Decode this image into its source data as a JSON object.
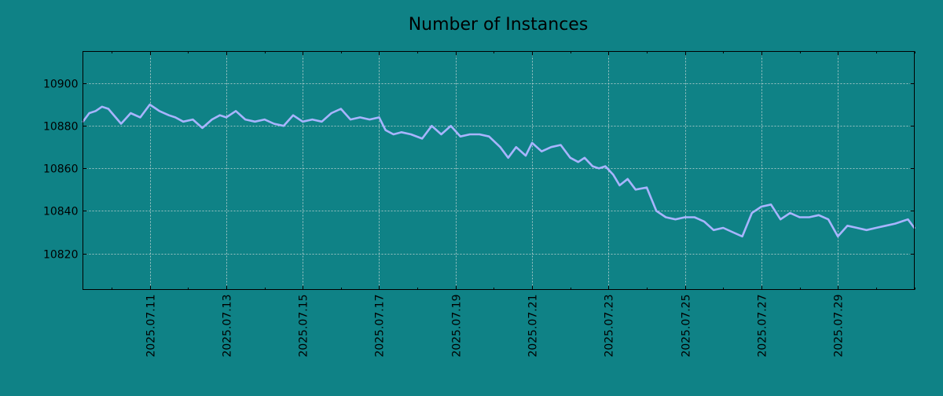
{
  "chart_data": {
    "type": "line",
    "title": "Number of Instances",
    "xlabel": "",
    "ylabel": "",
    "grid": true,
    "x_ticks": [
      "2025.07.11",
      "2025.07.13",
      "2025.07.15",
      "2025.07.17",
      "2025.07.19",
      "2025.07.21",
      "2025.07.23",
      "2025.07.25",
      "2025.07.27",
      "2025.07.29"
    ],
    "y_ticks": [
      10820,
      10840,
      10860,
      10880,
      10900
    ],
    "xlim": [
      "2025-07-09 06:00",
      "2025-07-31 00:00"
    ],
    "ylim": [
      10803,
      10915
    ],
    "colors": {
      "background": "#0f8286",
      "line": "#a8b4ff",
      "grid": "#c8d6d6",
      "axes": "#000000"
    },
    "series": [
      {
        "x": [
          "2025-07-09 06:00",
          "2025-07-09 10:00",
          "2025-07-09 14:00",
          "2025-07-09 18:00",
          "2025-07-09 22:00",
          "2025-07-10 06:00",
          "2025-07-10 12:00",
          "2025-07-10 18:00",
          "2025-07-11 00:00",
          "2025-07-11 04:00",
          "2025-07-11 06:00",
          "2025-07-11 12:00",
          "2025-07-11 16:00",
          "2025-07-11 21:00",
          "2025-07-12 03:00",
          "2025-07-12 09:00",
          "2025-07-12 15:00",
          "2025-07-12 20:00",
          "2025-07-13 00:00",
          "2025-07-13 06:00",
          "2025-07-13 12:00",
          "2025-07-13 18:00",
          "2025-07-14 00:00",
          "2025-07-14 06:00",
          "2025-07-14 12:00",
          "2025-07-14 18:00",
          "2025-07-15 00:00",
          "2025-07-15 06:00",
          "2025-07-15 12:00",
          "2025-07-15 18:00",
          "2025-07-16 00:00",
          "2025-07-16 06:00",
          "2025-07-16 12:00",
          "2025-07-16 18:00",
          "2025-07-17 00:00",
          "2025-07-17 04:00",
          "2025-07-17 09:00",
          "2025-07-17 14:00",
          "2025-07-17 20:00",
          "2025-07-18 03:00",
          "2025-07-18 09:00",
          "2025-07-18 15:00",
          "2025-07-18 21:00",
          "2025-07-19 03:00",
          "2025-07-19 09:00",
          "2025-07-19 15:00",
          "2025-07-19 21:00",
          "2025-07-20 04:00",
          "2025-07-20 09:00",
          "2025-07-20 14:00",
          "2025-07-20 20:00",
          "2025-07-21 00:00",
          "2025-07-21 06:00",
          "2025-07-21 12:00",
          "2025-07-21 18:00",
          "2025-07-22 00:00",
          "2025-07-22 05:00",
          "2025-07-22 09:00",
          "2025-07-22 14:00",
          "2025-07-22 18:00",
          "2025-07-22 22:00",
          "2025-07-23 03:00",
          "2025-07-23 07:00",
          "2025-07-23 12:00",
          "2025-07-23 17:00",
          "2025-07-24 00:00",
          "2025-07-24 06:00",
          "2025-07-24 12:00",
          "2025-07-24 18:00",
          "2025-07-25 00:00",
          "2025-07-25 06:00",
          "2025-07-25 12:00",
          "2025-07-25 18:00",
          "2025-07-26 00:00",
          "2025-07-26 06:00",
          "2025-07-26 12:00",
          "2025-07-26 18:00",
          "2025-07-27 00:00",
          "2025-07-27 06:00",
          "2025-07-27 12:00",
          "2025-07-27 18:00",
          "2025-07-28 00:00",
          "2025-07-28 06:00",
          "2025-07-28 12:00",
          "2025-07-28 18:00",
          "2025-07-29 00:00",
          "2025-07-29 06:00",
          "2025-07-29 12:00",
          "2025-07-29 18:00",
          "2025-07-30 00:00",
          "2025-07-30 06:00",
          "2025-07-30 12:00",
          "2025-07-30 16:00",
          "2025-07-30 20:00",
          "2025-07-31 00:00"
        ],
        "values": [
          10882,
          10886,
          10887,
          10889,
          10888,
          10881,
          10886,
          10884,
          10890,
          10888,
          10887,
          10885,
          10884,
          10882,
          10883,
          10879,
          10883,
          10885,
          10884,
          10887,
          10883,
          10882,
          10883,
          10881,
          10880,
          10885,
          10882,
          10883,
          10882,
          10886,
          10888,
          10883,
          10884,
          10883,
          10884,
          10878,
          10876,
          10877,
          10876,
          10874,
          10880,
          10876,
          10880,
          10875,
          10876,
          10876,
          10875,
          10870,
          10865,
          10870,
          10866,
          10872,
          10868,
          10870,
          10871,
          10865,
          10863,
          10865,
          10861,
          10860,
          10861,
          10857,
          10852,
          10855,
          10850,
          10851,
          10840,
          10837,
          10836,
          10837,
          10837,
          10835,
          10831,
          10832,
          10830,
          10828,
          10839,
          10842,
          10843,
          10836,
          10839,
          10837,
          10837,
          10838,
          10836,
          10828,
          10833,
          10832,
          10831,
          10832,
          10833,
          10834,
          10835,
          10836,
          10832
        ]
      }
    ]
  }
}
